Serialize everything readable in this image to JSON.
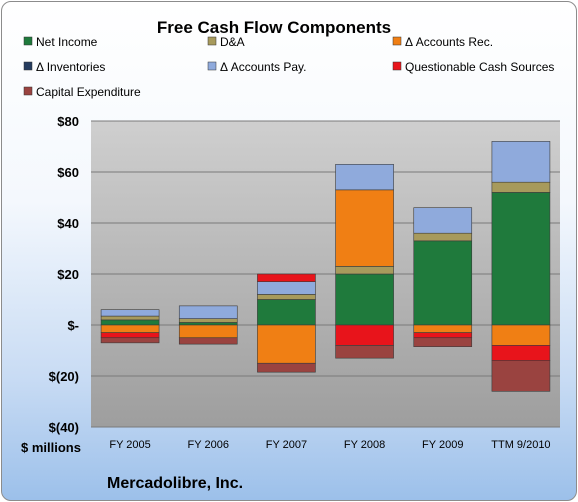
{
  "chart_data": {
    "type": "bar",
    "stacked": true,
    "title": "Free Cash Flow Components",
    "ylabel": "$ millions",
    "footer": "Mercadolibre, Inc.",
    "categories": [
      "FY 2005",
      "FY 2006",
      "FY 2007",
      "FY 2008",
      "FY 2009",
      "TTM 9/2010"
    ],
    "ylim": [
      -40,
      80
    ],
    "yticks": [
      80,
      60,
      40,
      20,
      0,
      -20,
      -40
    ],
    "ytick_labels": [
      "$80",
      "$60",
      "$40",
      "$20",
      "$-",
      "$(20)",
      "$(40)"
    ],
    "grid": true,
    "legend_position": "top",
    "series": [
      {
        "name": "Net Income",
        "color": "#1f7a3c",
        "values": [
          2,
          1,
          10,
          20,
          33,
          52
        ]
      },
      {
        "name": "D&A",
        "color": "#a79a5c",
        "values": [
          1.5,
          1.5,
          2,
          3,
          3,
          4
        ]
      },
      {
        "name": "Δ Accounts Rec.",
        "color": "#f07f14",
        "values": [
          -3,
          -5,
          -15,
          30,
          -3,
          -8
        ]
      },
      {
        "name": "Δ Inventories",
        "color": "#243b5e",
        "values": [
          0,
          0,
          0,
          0,
          0,
          0
        ]
      },
      {
        "name": "Δ Accounts Pay.",
        "color": "#8faadc",
        "values": [
          2.5,
          5,
          5,
          10,
          10,
          16
        ]
      },
      {
        "name": "Questionable Cash Sources",
        "color": "#e8141b",
        "values": [
          -2,
          0,
          3,
          -8,
          -2,
          -6
        ]
      },
      {
        "name": "Capital Expenditure",
        "color": "#9a4340",
        "values": [
          -2,
          -2.5,
          -3.5,
          -5,
          -3.5,
          -12
        ]
      }
    ]
  }
}
